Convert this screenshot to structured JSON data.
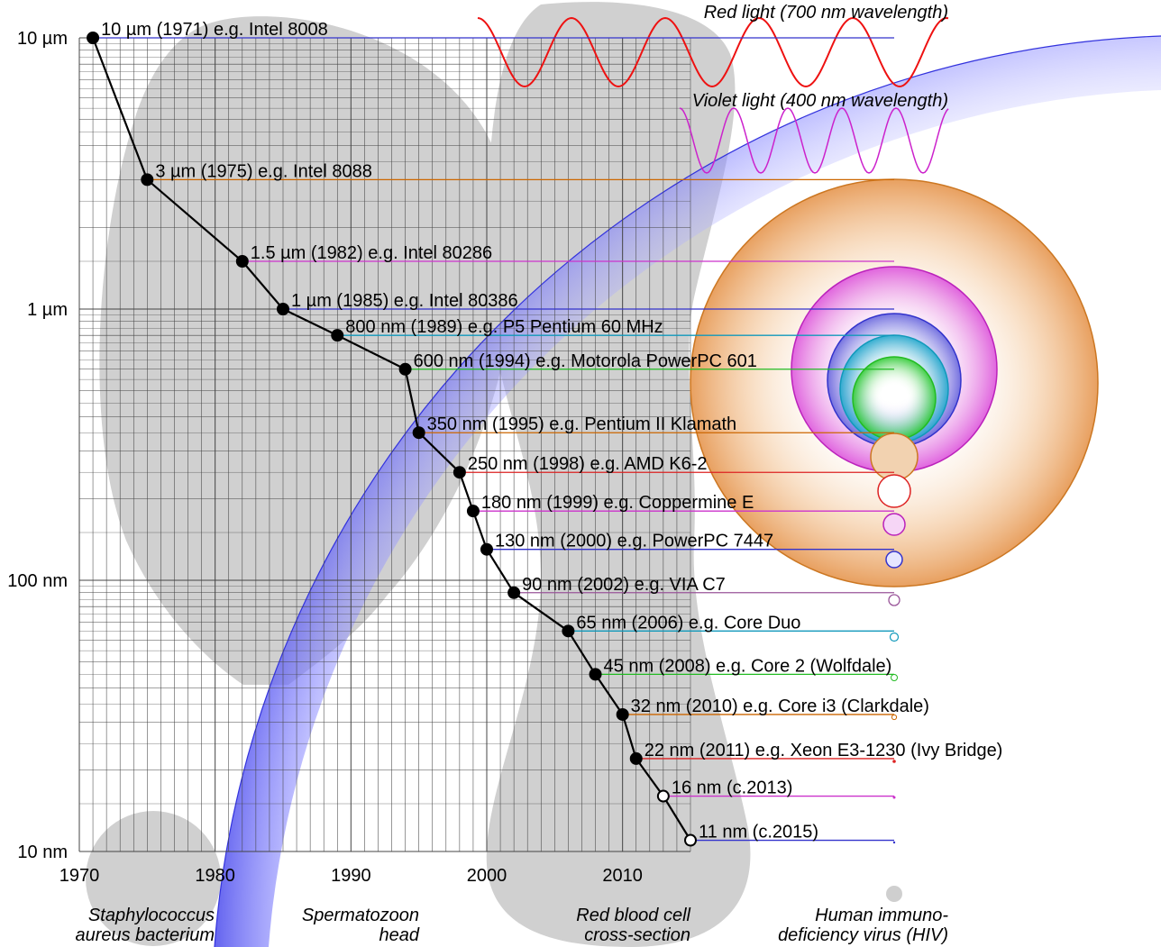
{
  "chart_data": {
    "type": "line",
    "title": "",
    "xlabel": "",
    "ylabel": "",
    "xlim": [
      1970,
      2015
    ],
    "ylim_nm": [
      10,
      10000
    ],
    "y_scale": "log",
    "grid": true,
    "x_ticks": [
      "1970",
      "1980",
      "1990",
      "2000",
      "2010"
    ],
    "x_tick_values": [
      1970,
      1980,
      1990,
      2000,
      2010
    ],
    "y_ticks": [
      "10 µm",
      "1 µm",
      "100 nm",
      "10 nm"
    ],
    "y_tick_values_nm": [
      10000,
      1000,
      100,
      10
    ],
    "points": [
      {
        "year": 1971,
        "nm": 10000,
        "label": "10 µm (1971) e.g. Intel 8008",
        "projected": false,
        "color": "#3333cc"
      },
      {
        "year": 1975,
        "nm": 3000,
        "label": "3 µm (1975) e.g. Intel 8088",
        "projected": false,
        "color": "#cc6600"
      },
      {
        "year": 1982,
        "nm": 1500,
        "label": "1.5 µm (1982) e.g. Intel 80286",
        "projected": false,
        "color": "#cc33cc"
      },
      {
        "year": 1985,
        "nm": 1000,
        "label": "1 µm (1985) e.g. Intel 80386",
        "projected": false,
        "color": "#3333cc"
      },
      {
        "year": 1989,
        "nm": 800,
        "label": "800 nm (1989) e.g. P5 Pentium 60 MHz",
        "projected": false,
        "color": "#1199bb"
      },
      {
        "year": 1994,
        "nm": 600,
        "label": "600 nm (1994) e.g. Motorola PowerPC 601",
        "projected": false,
        "color": "#22bb22"
      },
      {
        "year": 1995,
        "nm": 350,
        "label": "350 nm (1995) e.g. Pentium II Klamath",
        "projected": false,
        "color": "#cc6600"
      },
      {
        "year": 1998,
        "nm": 250,
        "label": "250 nm (1998) e.g. AMD K6-2",
        "projected": false,
        "color": "#dd2222"
      },
      {
        "year": 1999,
        "nm": 180,
        "label": "180 nm (1999) e.g. Coppermine E",
        "projected": false,
        "color": "#cc33cc"
      },
      {
        "year": 2000,
        "nm": 130,
        "label": "130 nm (2000) e.g. PowerPC 7447",
        "projected": false,
        "color": "#3333cc"
      },
      {
        "year": 2002,
        "nm": 90,
        "label": "90 nm (2002) e.g. VIA C7",
        "projected": false,
        "color": "#995599"
      },
      {
        "year": 2006,
        "nm": 65,
        "label": "65 nm (2006) e.g. Core Duo",
        "projected": false,
        "color": "#1199bb"
      },
      {
        "year": 2008,
        "nm": 45,
        "label": "45 nm (2008) e.g. Core 2 (Wolfdale)",
        "projected": false,
        "color": "#22bb22"
      },
      {
        "year": 2010,
        "nm": 32,
        "label": "32 nm (2010) e.g. Core i3 (Clarkdale)",
        "projected": false,
        "color": "#cc6600"
      },
      {
        "year": 2011,
        "nm": 22,
        "label": "22 nm (2011) e.g. Xeon E3-1230 (Ivy Bridge)",
        "projected": false,
        "color": "#dd2222"
      },
      {
        "year": 2013,
        "nm": 16,
        "label": "16 nm (c.2013)",
        "projected": true,
        "color": "#cc33cc"
      },
      {
        "year": 2015,
        "nm": 11,
        "label": "11 nm (c.2015)",
        "projected": true,
        "color": "#3333cc"
      }
    ],
    "annotations": [
      {
        "id": "red-light",
        "text": "Red light (700 nm wavelength)",
        "color": "#ee1111"
      },
      {
        "id": "violet-light",
        "text": "Violet light (400 nm wavelength)",
        "color": "#cc22cc"
      }
    ],
    "background_objects": [
      {
        "id": "staphylococcus",
        "lines": [
          "Staphylococcus",
          "aureus bacterium"
        ]
      },
      {
        "id": "spermatozoon",
        "lines": [
          "Spermatozoon",
          "head"
        ]
      },
      {
        "id": "red-blood-cell",
        "lines": [
          "Red blood cell",
          "cross-section"
        ]
      },
      {
        "id": "hiv",
        "lines": [
          "Human immuno-",
          "deficiency virus (HIV)"
        ]
      }
    ]
  }
}
